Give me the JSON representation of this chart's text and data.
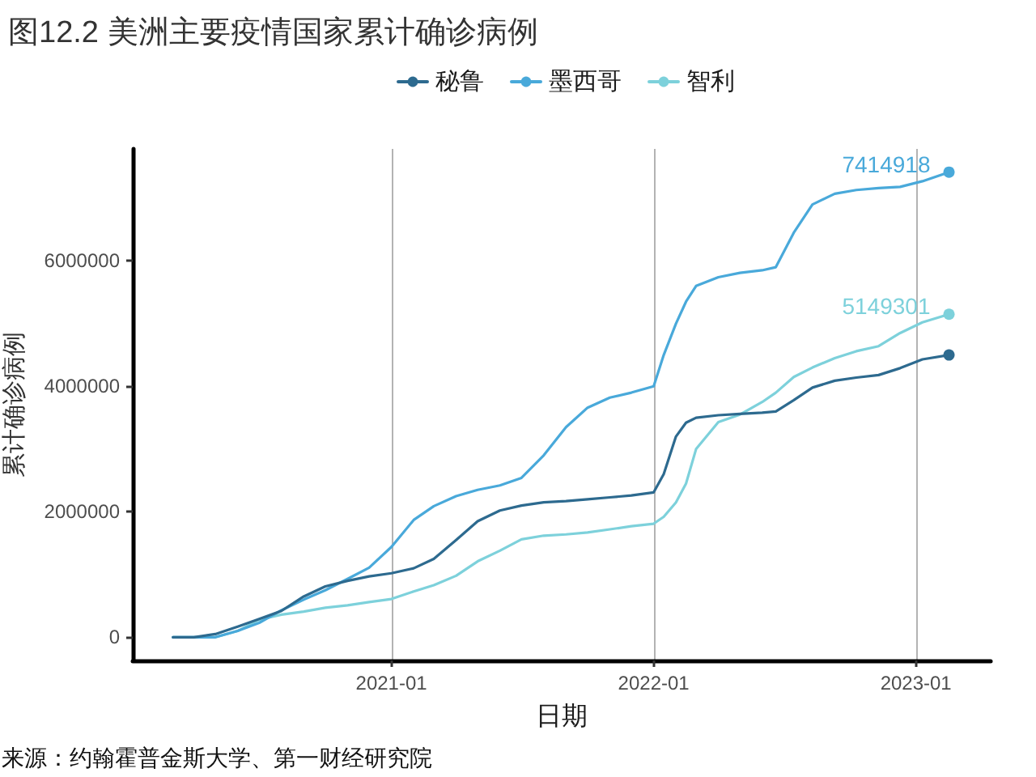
{
  "chart_data": {
    "type": "line",
    "title": "图12.2 美洲主要疫情国家累计确诊病例",
    "xlabel": "日期",
    "ylabel": "累计确诊病例",
    "annotations": [
      "来源：约翰霍普金斯大学、第一财经研究院"
    ],
    "x": [
      "2020-03-03",
      "2020-04-01",
      "2020-05-01",
      "2020-06-01",
      "2020-07-01",
      "2020-08-01",
      "2020-09-01",
      "2020-10-01",
      "2020-11-01",
      "2020-12-01",
      "2021-01-01",
      "2021-02-01",
      "2021-03-01",
      "2021-04-01",
      "2021-05-01",
      "2021-06-01",
      "2021-07-01",
      "2021-08-01",
      "2021-09-01",
      "2021-10-01",
      "2021-11-01",
      "2021-12-01",
      "2022-01-01",
      "2022-01-15",
      "2022-02-01",
      "2022-02-15",
      "2022-03-01",
      "2022-04-01",
      "2022-05-01",
      "2022-06-01",
      "2022-06-20",
      "2022-07-15",
      "2022-08-10",
      "2022-09-10",
      "2022-10-10",
      "2022-11-10",
      "2022-12-10",
      "2023-01-10",
      "2023-02-16"
    ],
    "series": [
      {
        "name": "秘鲁",
        "color": "#2d6a8f",
        "values": [
          0,
          0,
          50000,
          170000,
          290000,
          420000,
          650000,
          810000,
          900000,
          970000,
          1020000,
          1100000,
          1250000,
          1550000,
          1850000,
          2020000,
          2100000,
          2150000,
          2170000,
          2200000,
          2230000,
          2260000,
          2310000,
          2600000,
          3200000,
          3420000,
          3500000,
          3540000,
          3560000,
          3580000,
          3600000,
          3780000,
          3980000,
          4090000,
          4140000,
          4180000,
          4290000,
          4430000,
          4500000
        ]
      },
      {
        "name": "墨西哥",
        "color": "#49a9da",
        "values": [
          0,
          0,
          0,
          100000,
          230000,
          430000,
          600000,
          750000,
          930000,
          1110000,
          1440000,
          1870000,
          2090000,
          2250000,
          2350000,
          2420000,
          2540000,
          2900000,
          3350000,
          3660000,
          3820000,
          3900000,
          4000000,
          4500000,
          5000000,
          5350000,
          5600000,
          5740000,
          5810000,
          5850000,
          5900000,
          6450000,
          6900000,
          7070000,
          7130000,
          7160000,
          7180000,
          7270000,
          7414918
        ],
        "value_labels": [
          null,
          null,
          null,
          null,
          null,
          null,
          null,
          null,
          null,
          null,
          null,
          null,
          null,
          null,
          null,
          null,
          null,
          null,
          null,
          null,
          null,
          null,
          null,
          null,
          null,
          null,
          null,
          null,
          null,
          null,
          null,
          null,
          null,
          null,
          null,
          null,
          null,
          null,
          "7414918"
        ]
      },
      {
        "name": "智利",
        "color": "#7dd1db",
        "values": [
          0,
          0,
          0,
          100000,
          280000,
          360000,
          410000,
          470000,
          510000,
          560000,
          610000,
          730000,
          830000,
          980000,
          1210000,
          1380000,
          1560000,
          1620000,
          1640000,
          1670000,
          1720000,
          1770000,
          1810000,
          1920000,
          2150000,
          2450000,
          3000000,
          3430000,
          3550000,
          3750000,
          3900000,
          4150000,
          4300000,
          4450000,
          4560000,
          4640000,
          4850000,
          5020000,
          5149301
        ],
        "value_labels": [
          null,
          null,
          null,
          null,
          null,
          null,
          null,
          null,
          null,
          null,
          null,
          null,
          null,
          null,
          null,
          null,
          null,
          null,
          null,
          null,
          null,
          null,
          null,
          null,
          null,
          null,
          null,
          null,
          null,
          null,
          null,
          null,
          null,
          null,
          null,
          null,
          null,
          null,
          "5149301"
        ]
      }
    ],
    "xlim": [
      "2020-01-07",
      "2023-04-15"
    ],
    "xticks": [
      "2021-01",
      "2022-01",
      "2023-01"
    ],
    "ylim": [
      -370000,
      7785000
    ],
    "yticks": [
      0,
      2000000,
      4000000,
      6000000
    ],
    "grid": "x",
    "legend": "top"
  }
}
